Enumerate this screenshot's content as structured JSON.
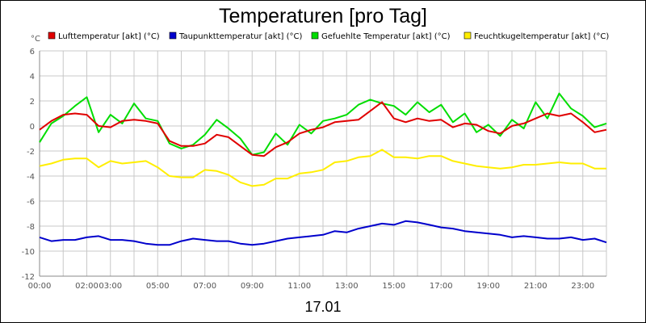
{
  "chart_data": {
    "type": "line",
    "title": "Temperaturen [pro Tag]",
    "ylabel": "°C",
    "xlabel": "17.01",
    "ylim": [
      -12,
      6
    ],
    "yticks": [
      6,
      4,
      2,
      0,
      -2,
      -4,
      -6,
      -8,
      -10,
      -12
    ],
    "xlim": [
      0,
      24
    ],
    "xtick_values": [
      0,
      2,
      3,
      5,
      7,
      9,
      11,
      13,
      15,
      17,
      19,
      21,
      23
    ],
    "xtick_labels": [
      "00:00",
      "02:00",
      "03:00",
      "05:00",
      "07:00",
      "09:00",
      "11:00",
      "13:00",
      "15:00",
      "17:00",
      "19:00",
      "21:00",
      "23:00"
    ],
    "grid": true,
    "legend_position": "top",
    "series": [
      {
        "name": "Lufttemperatur [akt] (°C)",
        "color": "#e00000",
        "x": [
          0,
          0.5,
          1,
          1.5,
          2,
          2.5,
          3,
          3.5,
          4,
          4.5,
          5,
          5.5,
          6,
          6.5,
          7,
          7.5,
          8,
          8.5,
          9,
          9.5,
          10,
          10.5,
          11,
          11.5,
          12,
          12.5,
          13,
          13.5,
          14,
          14.5,
          15,
          15.5,
          16,
          16.5,
          17,
          17.5,
          18,
          18.5,
          19,
          19.5,
          20,
          20.5,
          21,
          21.5,
          22,
          22.5,
          23,
          23.5,
          24
        ],
        "y": [
          -0.3,
          0.4,
          0.9,
          1.0,
          0.9,
          0,
          -0.1,
          0.4,
          0.5,
          0.4,
          0.2,
          -1.2,
          -1.6,
          -1.6,
          -1.4,
          -0.7,
          -0.9,
          -1.6,
          -2.3,
          -2.4,
          -1.7,
          -1.3,
          -0.6,
          -0.3,
          -0.1,
          0.3,
          0.4,
          0.5,
          1.2,
          1.9,
          0.6,
          0.3,
          0.6,
          0.4,
          0.5,
          -0.1,
          0.2,
          0.1,
          -0.4,
          -0.6,
          0,
          0.2,
          0.6,
          1.0,
          0.8,
          1.0,
          0.3,
          -0.5,
          -0.3
        ]
      },
      {
        "name": "Taupunkttemperatur [akt] (°C)",
        "color": "#0000cc",
        "x": [
          0,
          0.5,
          1,
          1.5,
          2,
          2.5,
          3,
          3.5,
          4,
          4.5,
          5,
          5.5,
          6,
          6.5,
          7,
          7.5,
          8,
          8.5,
          9,
          9.5,
          10,
          10.5,
          11,
          11.5,
          12,
          12.5,
          13,
          13.5,
          14,
          14.5,
          15,
          15.5,
          16,
          16.5,
          17,
          17.5,
          18,
          18.5,
          19,
          19.5,
          20,
          20.5,
          21,
          21.5,
          22,
          22.5,
          23,
          23.5,
          24
        ],
        "y": [
          -8.9,
          -9.2,
          -9.1,
          -9.1,
          -8.9,
          -8.8,
          -9.1,
          -9.1,
          -9.2,
          -9.4,
          -9.5,
          -9.5,
          -9.2,
          -9.0,
          -9.1,
          -9.2,
          -9.2,
          -9.4,
          -9.5,
          -9.4,
          -9.2,
          -9.0,
          -8.9,
          -8.8,
          -8.7,
          -8.4,
          -8.5,
          -8.2,
          -8.0,
          -7.8,
          -7.9,
          -7.6,
          -7.7,
          -7.9,
          -8.1,
          -8.2,
          -8.4,
          -8.5,
          -8.6,
          -8.7,
          -8.9,
          -8.8,
          -8.9,
          -9.0,
          -9.0,
          -8.9,
          -9.1,
          -9.0,
          -9.3
        ]
      },
      {
        "name": "Gefuehlte Temperatur [akt] (°C)",
        "color": "#00dd00",
        "x": [
          0,
          0.5,
          1,
          1.5,
          2,
          2.5,
          3,
          3.5,
          4,
          4.5,
          5,
          5.5,
          6,
          6.5,
          7,
          7.5,
          8,
          8.5,
          9,
          9.5,
          10,
          10.5,
          11,
          11.5,
          12,
          12.5,
          13,
          13.5,
          14,
          14.5,
          15,
          15.5,
          16,
          16.5,
          17,
          17.5,
          18,
          18.5,
          19,
          19.5,
          20,
          20.5,
          21,
          21.5,
          22,
          22.5,
          23,
          23.5,
          24
        ],
        "y": [
          -1.3,
          0.2,
          0.8,
          1.6,
          2.3,
          -0.5,
          0.9,
          0.2,
          1.8,
          0.6,
          0.4,
          -1.4,
          -1.8,
          -1.5,
          -0.7,
          0.5,
          -0.2,
          -1.0,
          -2.3,
          -2.1,
          -0.6,
          -1.5,
          0.1,
          -0.6,
          0.4,
          0.6,
          0.9,
          1.7,
          2.1,
          1.8,
          1.6,
          0.9,
          1.9,
          1.1,
          1.7,
          0.3,
          1.0,
          -0.5,
          0.1,
          -0.8,
          0.5,
          -0.2,
          1.9,
          0.6,
          2.6,
          1.4,
          0.8,
          -0.1,
          0.2
        ]
      },
      {
        "name": "Feuchtkugeltemperatur [akt] (°C)",
        "color": "#ffee00",
        "x": [
          0,
          0.5,
          1,
          1.5,
          2,
          2.5,
          3,
          3.5,
          4,
          4.5,
          5,
          5.5,
          6,
          6.5,
          7,
          7.5,
          8,
          8.5,
          9,
          9.5,
          10,
          10.5,
          11,
          11.5,
          12,
          12.5,
          13,
          13.5,
          14,
          14.5,
          15,
          15.5,
          16,
          16.5,
          17,
          17.5,
          18,
          18.5,
          19,
          19.5,
          20,
          20.5,
          21,
          21.5,
          22,
          22.5,
          23,
          23.5,
          24
        ],
        "y": [
          -3.2,
          -3.0,
          -2.7,
          -2.6,
          -2.6,
          -3.3,
          -2.8,
          -3.0,
          -2.9,
          -2.8,
          -3.3,
          -4.0,
          -4.1,
          -4.1,
          -3.5,
          -3.6,
          -3.9,
          -4.5,
          -4.8,
          -4.7,
          -4.2,
          -4.2,
          -3.8,
          -3.7,
          -3.5,
          -2.9,
          -2.8,
          -2.5,
          -2.4,
          -1.9,
          -2.5,
          -2.5,
          -2.6,
          -2.4,
          -2.4,
          -2.8,
          -3.0,
          -3.2,
          -3.3,
          -3.4,
          -3.3,
          -3.1,
          -3.1,
          -3.0,
          -2.9,
          -3.0,
          -3.0,
          -3.4,
          -3.4
        ]
      }
    ]
  }
}
